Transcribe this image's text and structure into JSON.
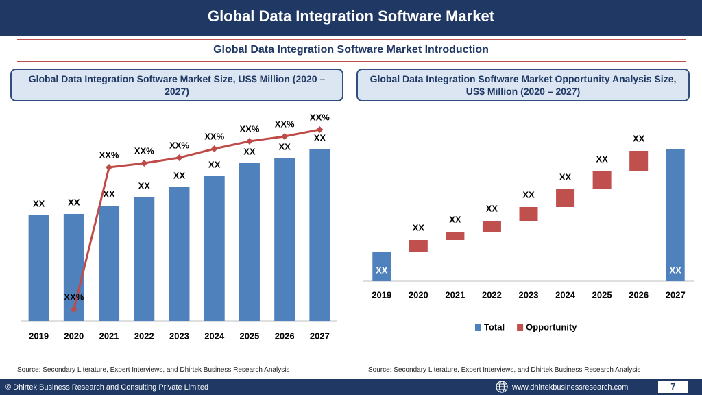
{
  "header": {
    "title": "Global Data Integration Software Market",
    "subtitle": "Global Data Integration Software Market  Introduction"
  },
  "chart_data": [
    {
      "type": "bar",
      "title": "Global Data Integration Software Market  Size, US$ Million (2020 – 2027)",
      "categories": [
        "2019",
        "2020",
        "2021",
        "2022",
        "2023",
        "2024",
        "2025",
        "2026",
        "2027"
      ],
      "ylim": [
        0,
        300
      ],
      "y2lim": [
        0,
        300
      ],
      "series": [
        {
          "type": "bar",
          "color": "#4f81bd",
          "values": [
            154,
            156,
            168,
            180,
            195,
            211,
            230,
            237,
            250
          ],
          "value_labels": [
            "XX",
            "XX",
            "XX",
            "XX",
            "XX",
            "XX",
            "XX",
            "XX",
            "XX"
          ]
        },
        {
          "type": "line",
          "axis": "y2",
          "color": "#be4b48",
          "values": [
            null,
            17,
            224,
            230,
            238,
            251,
            262,
            269,
            279
          ],
          "value_labels": [
            null,
            "XX%",
            "XX%",
            "XX%",
            "XX%",
            "XX%",
            "XX%",
            "XX%",
            "XX%"
          ]
        }
      ],
      "source": "Source: Secondary Literature, Expert Interviews, and Dhirtek Business Research Analysis"
    },
    {
      "type": "waterfall",
      "title": "Global Data Integration Software Market  Opportunity Analysis Size, US$ Million (2020 – 2027)",
      "categories": [
        "2019",
        "2020",
        "2021",
        "2022",
        "2023",
        "2024",
        "2025",
        "2026",
        "2027"
      ],
      "ylim": [
        0,
        210
      ],
      "series": [
        {
          "name": "Total",
          "color": "#4f81bd",
          "values": [
            42,
            null,
            null,
            null,
            null,
            null,
            null,
            null,
            193
          ],
          "value_labels": [
            "XX",
            null,
            null,
            null,
            null,
            null,
            null,
            null,
            "XX"
          ]
        },
        {
          "name": "Opportunity",
          "color": "#c0504d",
          "values": [
            null,
            18,
            12,
            16,
            20,
            26,
            26,
            30,
            null
          ],
          "value_labels": [
            null,
            "XX",
            "XX",
            "XX",
            "XX",
            "XX",
            "XX",
            "XX",
            null
          ]
        }
      ],
      "legend": "bottom",
      "source": "Source: Secondary Literature, Expert Interviews, and Dhirtek Business Research Analysis"
    }
  ],
  "footer": {
    "copyright": "© Dhirtek Business Research and Consulting Private Limited",
    "website": "www.dhirtekbusinessresearch.com",
    "page": 7
  }
}
